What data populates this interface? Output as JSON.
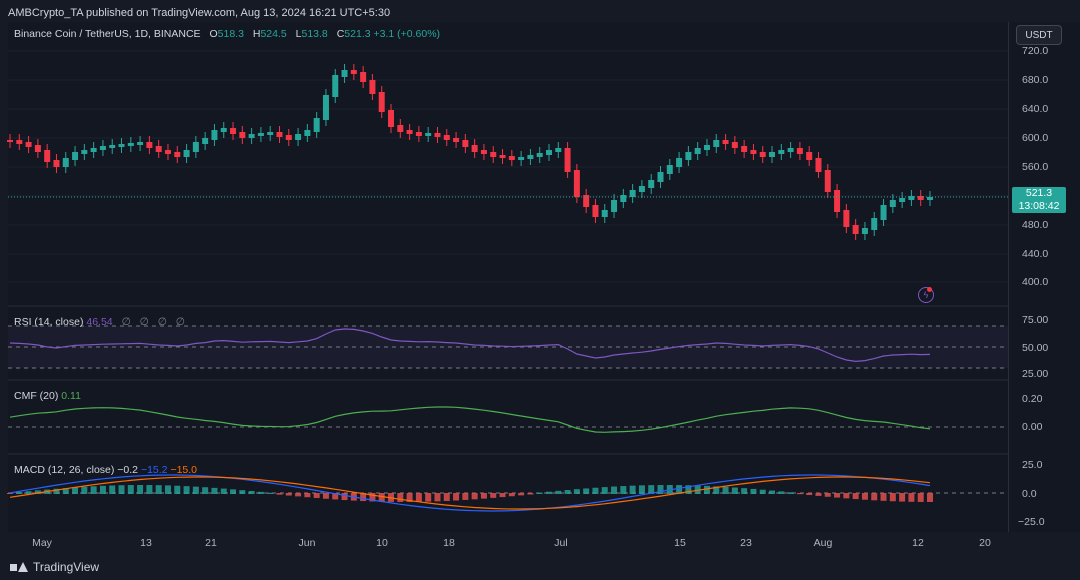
{
  "header": {
    "published": "AMBCrypto_TA published on TradingView.com, Aug 13, 2024 16:21 UTC+5:30",
    "currency": "USDT"
  },
  "symbol": {
    "name": "Binance Coin / TetherUS, 1D, BINANCE",
    "o_label": "O",
    "o": "518.3",
    "h_label": "H",
    "h": "524.5",
    "l_label": "L",
    "l": "513.8",
    "c_label": "C",
    "c": "521.3",
    "change": "+3.1 (+0.60%)"
  },
  "last_price": {
    "price": "521.3",
    "countdown": "13:08:42",
    "color": "#26a69a"
  },
  "price_axis": [
    "720.0",
    "680.0",
    "640.0",
    "600.0",
    "560.0",
    "520.0",
    "480.0",
    "440.0",
    "400.0"
  ],
  "rsi": {
    "title": "RSI (14, close)",
    "value": "46.54",
    "settings": "∅ ∅ ∅ ∅",
    "axis": [
      "75.00",
      "50.00",
      "25.00"
    ],
    "color": "#7e57c2"
  },
  "cmf": {
    "title": "CMF (20)",
    "value": "0.11",
    "axis": [
      "0.20",
      "0.00"
    ],
    "color": "#4caf50"
  },
  "macd": {
    "title": "MACD (12, 26, close)",
    "v1": "−0.2",
    "v2": "−15.2",
    "v3": "−15.0",
    "axis": [
      "25.0",
      "0.0",
      "−25.0"
    ]
  },
  "dates": [
    "May",
    "13",
    "21",
    "Jun",
    "10",
    "18",
    "Jul",
    "15",
    "23",
    "Aug",
    "12",
    "20"
  ],
  "footer": {
    "brand": "TradingView"
  },
  "colors": {
    "up": "#26a69a",
    "down": "#f23645",
    "bg": "#131722"
  }
}
